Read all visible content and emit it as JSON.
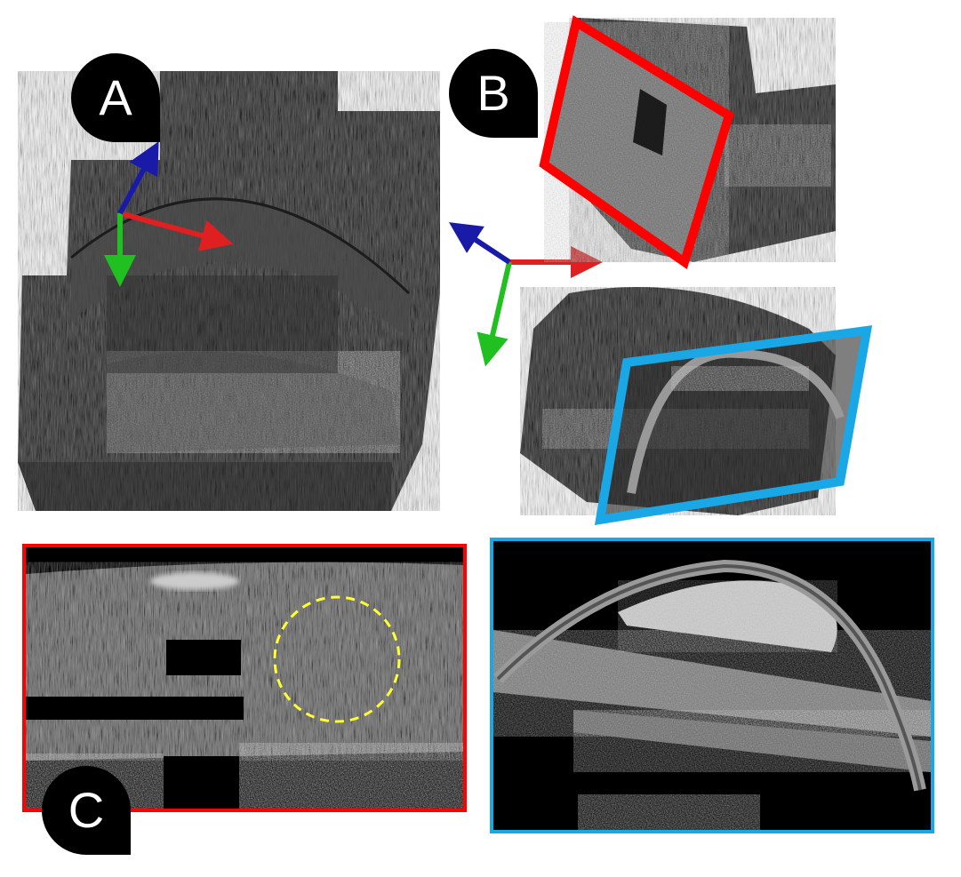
{
  "labels": {
    "a": "A",
    "b": "B",
    "c": "C"
  },
  "colors": {
    "red_frame": "#ff0000",
    "blue_frame": "#1aa7e6",
    "dashed_circle": "#ffff33",
    "axis_x": "#e02020",
    "axis_y": "#20c020",
    "axis_z": "#1a1aa8"
  }
}
